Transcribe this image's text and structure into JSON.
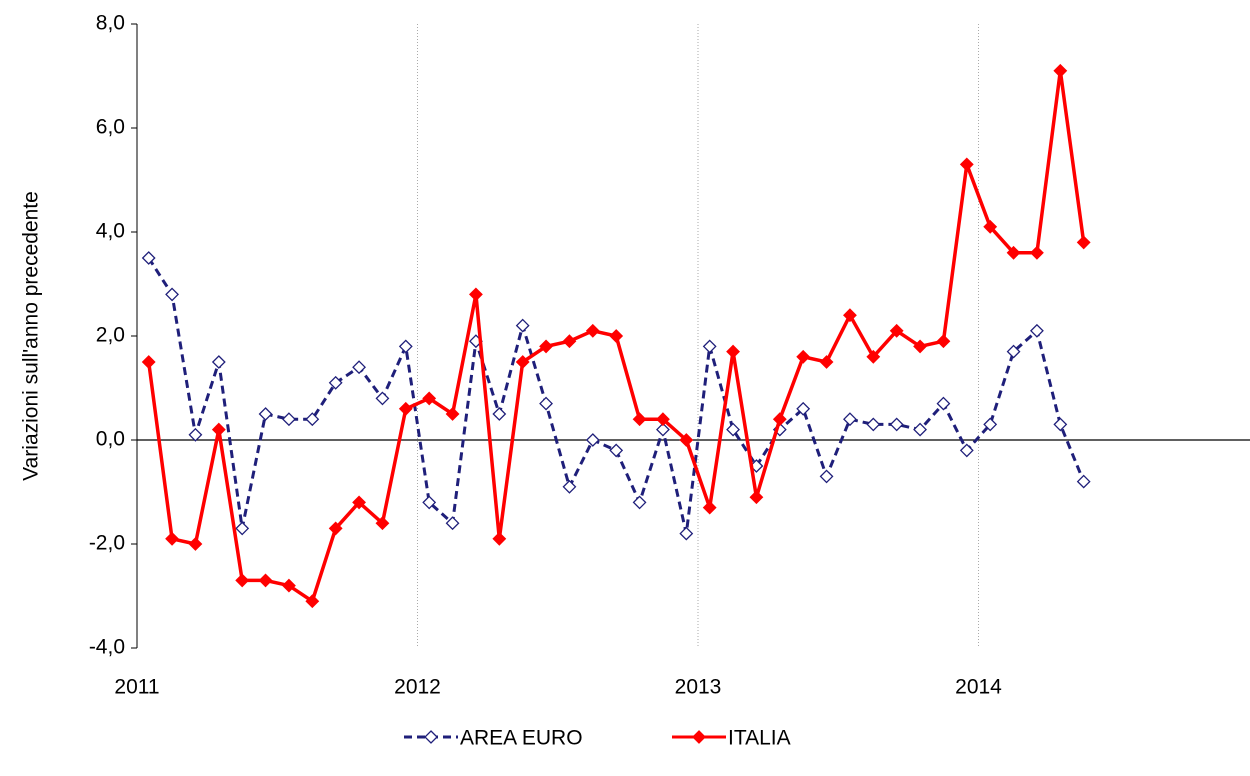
{
  "chart_data": {
    "type": "line",
    "y_label": "Variazioni sull'anno precedente",
    "x": [
      2011.0417,
      2011.125,
      2011.2083,
      2011.2917,
      2011.375,
      2011.4583,
      2011.5417,
      2011.625,
      2011.7083,
      2011.7917,
      2011.875,
      2011.9583,
      2012.0417,
      2012.125,
      2012.2083,
      2012.2917,
      2012.375,
      2012.4583,
      2012.5417,
      2012.625,
      2012.7083,
      2012.7917,
      2012.875,
      2012.9583,
      2013.0417,
      2013.125,
      2013.2083,
      2013.2917,
      2013.375,
      2013.4583,
      2013.5417,
      2013.625,
      2013.7083,
      2013.7917,
      2013.875,
      2013.9583,
      2014.0417,
      2014.125,
      2014.2083,
      2014.2917,
      2014.375
    ],
    "series": [
      {
        "name": "AREA EURO",
        "color": "#1f1f7a",
        "dash": true,
        "marker": "diamond-open",
        "values": [
          3.5,
          2.8,
          0.1,
          1.5,
          -1.7,
          0.5,
          0.4,
          0.4,
          1.1,
          1.4,
          0.8,
          1.8,
          -1.2,
          -1.6,
          1.9,
          0.5,
          2.2,
          0.7,
          -0.9,
          0.0,
          -0.2,
          -1.2,
          0.2,
          -1.8,
          1.8,
          0.2,
          -0.5,
          0.2,
          0.6,
          -0.7,
          0.4,
          0.3,
          0.3,
          0.2,
          0.7,
          -0.2,
          0.3,
          1.7,
          2.1,
          0.3,
          -0.8
        ]
      },
      {
        "name": "ITALIA",
        "color": "#ff0000",
        "dash": false,
        "marker": "diamond",
        "values": [
          1.5,
          -1.9,
          -2.0,
          0.2,
          -2.7,
          -2.7,
          -2.8,
          -3.1,
          -1.7,
          -1.2,
          -1.6,
          0.6,
          0.8,
          0.5,
          2.8,
          -1.9,
          1.5,
          1.8,
          1.9,
          2.1,
          2.0,
          0.4,
          0.4,
          0.0,
          -1.3,
          1.7,
          -1.1,
          0.4,
          1.6,
          1.5,
          2.4,
          1.6,
          2.1,
          1.8,
          1.9,
          5.3,
          4.1,
          3.6,
          3.6,
          7.1,
          3.8
        ]
      }
    ],
    "xlim": [
      2011,
      2015
    ],
    "xticks": [
      2011,
      2012,
      2013,
      2014
    ],
    "ylim": [
      -4,
      8
    ],
    "yticks": [
      {
        "value": -4,
        "label": "-4,0"
      },
      {
        "value": -2,
        "label": "-2,0"
      },
      {
        "value": 0,
        "label": "0,0"
      },
      {
        "value": 2,
        "label": "2,0"
      },
      {
        "value": 4,
        "label": "4,0"
      },
      {
        "value": 6,
        "label": "6,0"
      },
      {
        "value": 8,
        "label": "8,0"
      }
    ],
    "grid": "x",
    "legend": "bottom"
  }
}
